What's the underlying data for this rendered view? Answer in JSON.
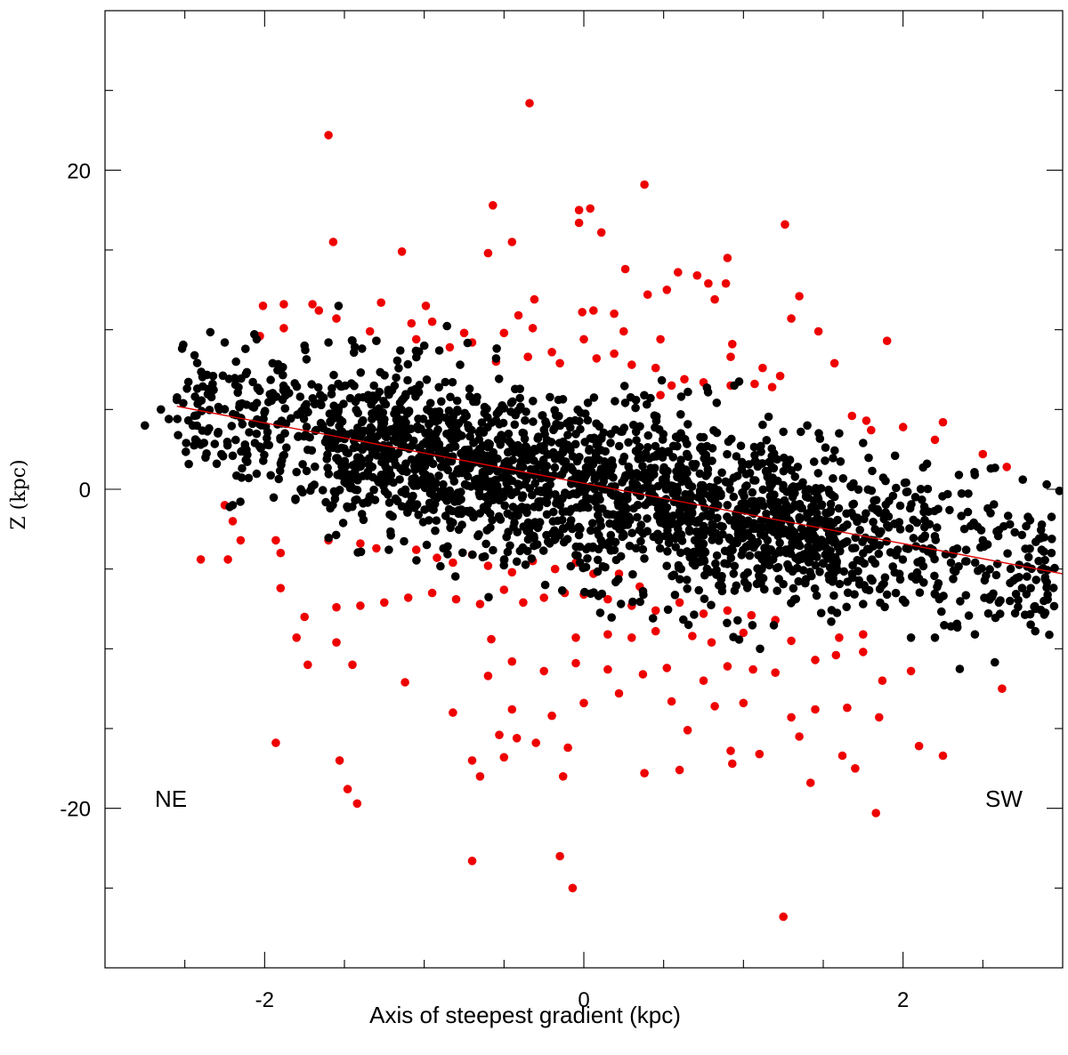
{
  "chart_data": {
    "type": "scatter",
    "title": "",
    "xlabel": "Axis of steepest gradient (kpc)",
    "ylabel": "Z (kpc)",
    "xlim": [
      -3.0,
      3.0
    ],
    "ylim": [
      -30.0,
      30.0
    ],
    "x_major_ticks": [
      -2,
      0,
      2
    ],
    "x_tick_labels": [
      "-2",
      "0",
      "2"
    ],
    "x_minor_step": 0.5,
    "y_major_ticks": [
      -20,
      0,
      20
    ],
    "y_tick_labels": [
      "-20",
      "0",
      "20"
    ],
    "y_minor_step": 5,
    "grid": false,
    "legend": "none",
    "annotations": [
      {
        "text": "NE",
        "x": -2.6,
        "y": -19.2
      },
      {
        "text": "SW",
        "x": 2.6,
        "y": -19.2
      }
    ],
    "colors": {
      "core": "#000000",
      "outliers": "#ee0000",
      "fit_line": "#dd0000"
    },
    "fit_line": {
      "x": [
        -2.55,
        3.0
      ],
      "y": [
        5.2,
        -5.3
      ]
    },
    "series": [
      {
        "color": "#ee0000",
        "points": [
          [
            -1.6,
            22.2
          ],
          [
            -0.34,
            24.2
          ],
          [
            0.38,
            19.1
          ],
          [
            -0.57,
            17.8
          ],
          [
            -0.03,
            17.5
          ],
          [
            0.04,
            17.6
          ],
          [
            -0.03,
            16.7
          ],
          [
            0.11,
            16.1
          ],
          [
            1.26,
            16.6
          ],
          [
            -1.57,
            15.5
          ],
          [
            -1.14,
            14.9
          ],
          [
            -0.6,
            14.8
          ],
          [
            -0.45,
            15.5
          ],
          [
            0.9,
            14.5
          ],
          [
            0.59,
            13.6
          ],
          [
            0.71,
            13.4
          ],
          [
            0.26,
            13.8
          ],
          [
            0.78,
            12.9
          ],
          [
            0.52,
            12.5
          ],
          [
            0.4,
            12.2
          ],
          [
            0.89,
            12.9
          ],
          [
            1.35,
            12.1
          ],
          [
            0.82,
            11.9
          ],
          [
            -2.01,
            11.5
          ],
          [
            -1.88,
            11.6
          ],
          [
            -1.7,
            11.6
          ],
          [
            -1.66,
            11.2
          ],
          [
            -1.27,
            11.7
          ],
          [
            -0.99,
            11.5
          ],
          [
            -0.31,
            11.9
          ],
          [
            -0.01,
            11.1
          ],
          [
            0.06,
            11.2
          ],
          [
            0.19,
            11.0
          ],
          [
            -1.55,
            10.7
          ],
          [
            -1.08,
            10.4
          ],
          [
            -0.95,
            10.5
          ],
          [
            -0.41,
            10.9
          ],
          [
            1.3,
            10.7
          ],
          [
            1.47,
            9.9
          ],
          [
            -2.03,
            9.6
          ],
          [
            -1.88,
            10.1
          ],
          [
            -1.34,
            9.9
          ],
          [
            -0.75,
            9.8
          ],
          [
            -0.5,
            9.8
          ],
          [
            -0.32,
            10.1
          ],
          [
            0.25,
            9.9
          ],
          [
            0.48,
            9.4
          ],
          [
            1.9,
            9.3
          ],
          [
            -1.3,
            9.3
          ],
          [
            -1.05,
            9.4
          ],
          [
            -0.7,
            9.2
          ],
          [
            0.0,
            9.4
          ],
          [
            0.93,
            9.1
          ],
          [
            -0.84,
            8.9
          ],
          [
            -0.2,
            8.6
          ],
          [
            0.19,
            8.5
          ],
          [
            -0.35,
            8.3
          ],
          [
            -0.55,
            8.0
          ],
          [
            0.08,
            8.2
          ],
          [
            -0.15,
            7.9
          ],
          [
            0.92,
            8.3
          ],
          [
            0.3,
            7.8
          ],
          [
            0.45,
            7.6
          ],
          [
            1.12,
            7.6
          ],
          [
            1.57,
            7.9
          ],
          [
            1.23,
            7.1
          ],
          [
            0.63,
            6.9
          ],
          [
            0.75,
            6.7
          ],
          [
            1.07,
            6.6
          ],
          [
            0.92,
            6.5
          ],
          [
            1.18,
            6.4
          ],
          [
            0.55,
            6.5
          ],
          [
            0.48,
            5.9
          ],
          [
            1.68,
            4.6
          ],
          [
            1.77,
            4.3
          ],
          [
            2.25,
            4.2
          ],
          [
            2.0,
            3.9
          ],
          [
            1.8,
            3.7
          ],
          [
            2.2,
            3.1
          ],
          [
            2.5,
            2.2
          ],
          [
            2.65,
            1.4
          ],
          [
            -2.25,
            -1.0
          ],
          [
            -2.2,
            -2.0
          ],
          [
            -2.15,
            -3.2
          ],
          [
            -2.4,
            -4.4
          ],
          [
            -2.23,
            -4.4
          ],
          [
            -1.93,
            -3.2
          ],
          [
            -1.9,
            -4.0
          ],
          [
            -1.6,
            -3.2
          ],
          [
            -1.4,
            -3.4
          ],
          [
            -1.3,
            -3.7
          ],
          [
            -1.05,
            -3.8
          ],
          [
            -0.92,
            -4.3
          ],
          [
            -0.82,
            -4.6
          ],
          [
            -0.7,
            -4.1
          ],
          [
            -0.6,
            -4.8
          ],
          [
            -0.45,
            -5.2
          ],
          [
            -0.32,
            -4.5
          ],
          [
            -0.18,
            -5.0
          ],
          [
            -0.05,
            -4.6
          ],
          [
            0.06,
            -5.3
          ],
          [
            0.22,
            -5.3
          ],
          [
            0.35,
            -6.1
          ],
          [
            -1.9,
            -6.2
          ],
          [
            -1.75,
            -8.0
          ],
          [
            -1.55,
            -7.4
          ],
          [
            -1.4,
            -7.3
          ],
          [
            -1.25,
            -7.1
          ],
          [
            -1.1,
            -6.8
          ],
          [
            -0.95,
            -6.5
          ],
          [
            -0.8,
            -6.9
          ],
          [
            -0.65,
            -7.2
          ],
          [
            -0.5,
            -6.3
          ],
          [
            -0.38,
            -7.1
          ],
          [
            -0.25,
            -6.8
          ],
          [
            -0.12,
            -6.5
          ],
          [
            0.0,
            -6.6
          ],
          [
            0.15,
            -6.9
          ],
          [
            0.3,
            -7.3
          ],
          [
            0.45,
            -7.6
          ],
          [
            0.6,
            -7.1
          ],
          [
            0.75,
            -7.8
          ],
          [
            0.9,
            -7.6
          ],
          [
            1.05,
            -7.9
          ],
          [
            1.2,
            -8.2
          ],
          [
            -1.8,
            -9.3
          ],
          [
            -1.55,
            -9.6
          ],
          [
            -0.58,
            -9.4
          ],
          [
            -0.05,
            -9.3
          ],
          [
            0.15,
            -9.1
          ],
          [
            0.3,
            -9.3
          ],
          [
            0.45,
            -8.9
          ],
          [
            0.68,
            -9.2
          ],
          [
            0.8,
            -9.6
          ],
          [
            1.0,
            -9.0
          ],
          [
            1.3,
            -9.5
          ],
          [
            1.6,
            -9.3
          ],
          [
            1.75,
            -9.1
          ],
          [
            -1.73,
            -11.0
          ],
          [
            -1.45,
            -11.0
          ],
          [
            -1.12,
            -12.1
          ],
          [
            -0.6,
            -11.7
          ],
          [
            -0.45,
            -10.8
          ],
          [
            -0.25,
            -11.4
          ],
          [
            -0.05,
            -10.9
          ],
          [
            0.15,
            -11.3
          ],
          [
            0.37,
            -11.6
          ],
          [
            0.52,
            -11.2
          ],
          [
            0.75,
            -12.0
          ],
          [
            0.9,
            -11.1
          ],
          [
            1.06,
            -11.3
          ],
          [
            1.2,
            -11.5
          ],
          [
            1.45,
            -10.7
          ],
          [
            1.58,
            -10.4
          ],
          [
            1.75,
            -10.2
          ],
          [
            1.87,
            -12.0
          ],
          [
            2.05,
            -11.4
          ],
          [
            -0.82,
            -14.0
          ],
          [
            -0.45,
            -13.8
          ],
          [
            -0.2,
            -14.2
          ],
          [
            0.0,
            -13.4
          ],
          [
            0.22,
            -12.8
          ],
          [
            0.55,
            -13.3
          ],
          [
            0.82,
            -13.6
          ],
          [
            1.0,
            -13.4
          ],
          [
            1.3,
            -14.3
          ],
          [
            1.45,
            -13.8
          ],
          [
            1.65,
            -13.7
          ],
          [
            1.85,
            -14.3
          ],
          [
            2.62,
            -12.5
          ],
          [
            -1.93,
            -15.9
          ],
          [
            -0.53,
            -15.4
          ],
          [
            -0.42,
            -15.6
          ],
          [
            -0.3,
            -15.9
          ],
          [
            -0.1,
            -16.2
          ],
          [
            0.65,
            -15.1
          ],
          [
            0.92,
            -16.4
          ],
          [
            1.1,
            -16.6
          ],
          [
            1.35,
            -15.5
          ],
          [
            -1.53,
            -17.0
          ],
          [
            -0.7,
            -17.0
          ],
          [
            -0.5,
            -16.8
          ],
          [
            0.38,
            -17.8
          ],
          [
            0.6,
            -17.6
          ],
          [
            0.93,
            -17.2
          ],
          [
            1.7,
            -17.5
          ],
          [
            1.62,
            -16.7
          ],
          [
            -1.48,
            -18.8
          ],
          [
            -0.65,
            -18.0
          ],
          [
            -0.13,
            -18.0
          ],
          [
            1.42,
            -18.4
          ],
          [
            -1.42,
            -19.7
          ],
          [
            1.83,
            -20.3
          ],
          [
            2.1,
            -16.1
          ],
          [
            2.25,
            -16.7
          ],
          [
            -0.15,
            -23.0
          ],
          [
            -0.7,
            -23.3
          ],
          [
            -0.07,
            -25.0
          ],
          [
            1.25,
            -26.8
          ]
        ]
      },
      {
        "color": "#000000",
        "points": [
          [
            -2.55,
            5.6
          ],
          [
            -2.6,
            4.4
          ],
          [
            -2.45,
            4.0
          ],
          [
            -2.35,
            6.2
          ],
          [
            -2.25,
            9.2
          ],
          [
            -2.12,
            8.8
          ],
          [
            -2.05,
            9.4
          ],
          [
            -1.95,
            7.9
          ],
          [
            -2.4,
            2.8
          ],
          [
            -2.3,
            1.6
          ],
          [
            -2.2,
            2.1
          ],
          [
            -2.1,
            0.7
          ],
          [
            -2.2,
            -1.0
          ],
          [
            -1.75,
            9.0
          ],
          [
            -1.6,
            9.2
          ],
          [
            -1.45,
            9.3
          ],
          [
            -1.3,
            9.3
          ],
          [
            -1.15,
            8.7
          ],
          [
            -1.0,
            9.0
          ],
          [
            -2.75,
            4.0
          ],
          [
            -2.65,
            5.0
          ],
          [
            -0.55,
            8.2
          ],
          [
            2.9,
            0.3
          ],
          [
            2.98,
            -0.1
          ],
          [
            2.93,
            -4.0
          ],
          [
            2.85,
            -4.5
          ],
          [
            2.8,
            -6.2
          ],
          [
            2.6,
            -7.1
          ],
          [
            2.45,
            -9.1
          ],
          [
            2.3,
            -8.6
          ],
          [
            2.2,
            -9.3
          ],
          [
            2.05,
            -9.3
          ],
          [
            2.75,
            0.6
          ],
          [
            2.55,
            1.3
          ],
          [
            2.35,
            0.9
          ],
          [
            2.15,
            1.6
          ],
          [
            1.95,
            2.1
          ],
          [
            1.75,
            2.9
          ],
          [
            1.6,
            3.5
          ],
          [
            1.4,
            4.0
          ],
          [
            1.25,
            3.6
          ],
          [
            2.7,
            -2.7
          ],
          [
            2.5,
            -3.2
          ],
          [
            2.3,
            -4.6
          ],
          [
            2.1,
            -5.6
          ],
          [
            1.9,
            -6.6
          ],
          [
            1.75,
            -7.2
          ],
          [
            1.55,
            -8.3
          ]
        ],
        "cloud": {
          "count": 3200,
          "x_range": [
            -2.55,
            2.95
          ],
          "trend_slope": -1.9,
          "trend_intercept": 0.1,
          "y_spread_core": 5.0,
          "y_spread_edge": 4.3
        }
      }
    ]
  }
}
